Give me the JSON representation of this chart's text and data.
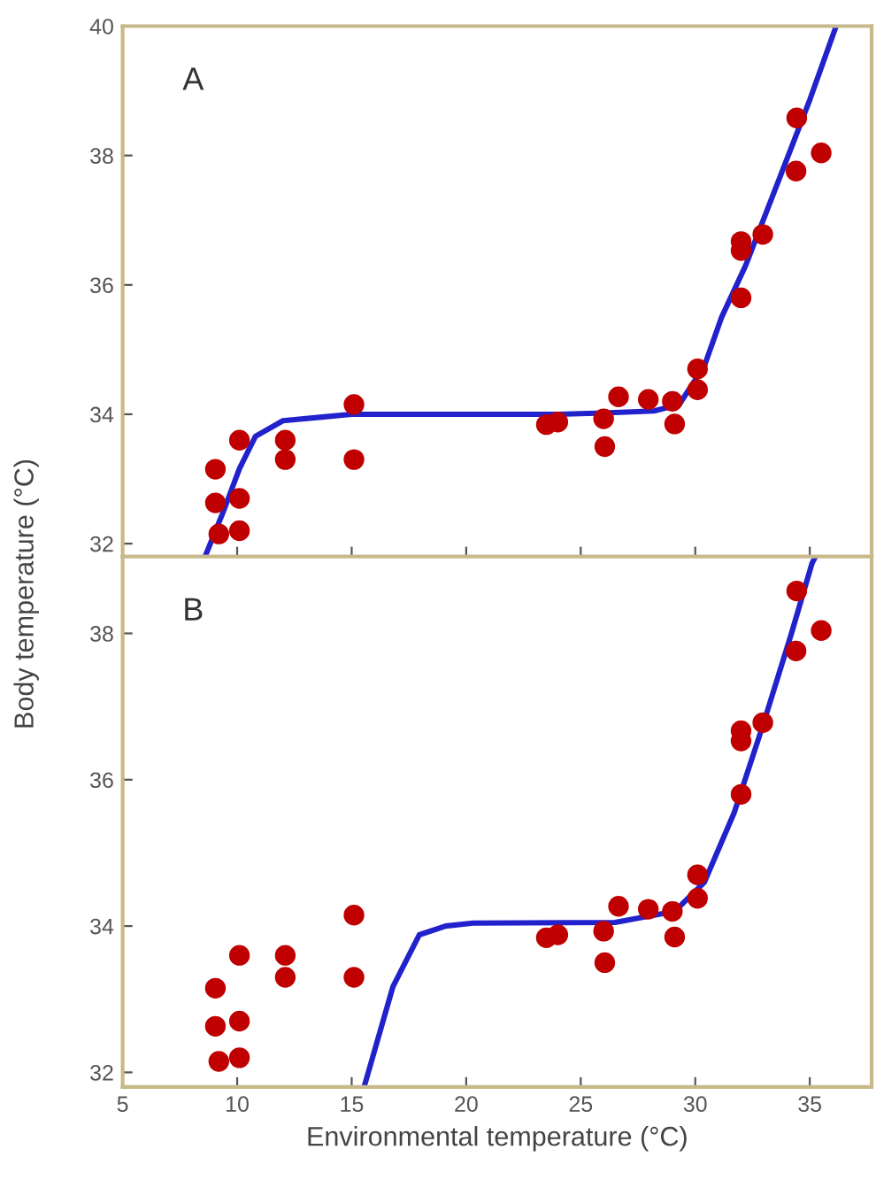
{
  "chart_data": [
    {
      "type": "scatter",
      "annotations": [
        "A"
      ],
      "xlim": [
        5,
        37.7
      ],
      "ylim": [
        31.8,
        40
      ],
      "xticks": [
        5,
        10,
        15,
        20,
        25,
        30,
        35
      ],
      "yticks": [
        32,
        34,
        36,
        38,
        40
      ],
      "tick_labels": "y",
      "grid": false,
      "legend": false,
      "marker": "circle",
      "x": [
        9.05,
        9.05,
        9.2,
        10.1,
        10.1,
        10.1,
        12.1,
        12.1,
        15.1,
        15.1,
        23.5,
        24.0,
        26.0,
        26.05,
        26.65,
        27.95,
        29.0,
        29.1,
        30.1,
        30.1,
        32.0,
        32.0,
        32.0,
        32.95,
        34.43,
        34.4,
        35.5
      ],
      "series": [
        {
          "color": "#c00000",
          "values": [
            33.15,
            32.63,
            32.15,
            33.6,
            32.7,
            32.2,
            33.6,
            33.3,
            34.15,
            33.3,
            33.84,
            33.88,
            33.93,
            33.5,
            34.27,
            34.23,
            34.2,
            33.85,
            34.38,
            34.7,
            36.67,
            36.53,
            35.8,
            36.78,
            38.58,
            37.76,
            38.04
          ]
        },
        {
          "type": "line",
          "color": "#2222cc",
          "line_style": "solid",
          "marker": "none",
          "x": [
            8.6,
            9.4,
            10.1,
            10.8,
            12,
            13.8,
            15,
            20,
            24,
            26,
            28.2,
            29.3,
            30.4,
            31.15,
            32.2,
            33.7,
            35,
            36.15
          ],
          "values": [
            31.8,
            32.5,
            33.16,
            33.66,
            33.9,
            33.96,
            34,
            34,
            34,
            34.02,
            34.05,
            34.15,
            34.75,
            35.5,
            36.3,
            37.67,
            38.86,
            40
          ]
        }
      ]
    },
    {
      "type": "scatter",
      "annotations": [
        "B"
      ],
      "xlabel": "Environmental temperature (°C)",
      "ylabel": "Body temperature (°C)",
      "xlim": [
        5,
        37.7
      ],
      "ylim": [
        31.8,
        39.05
      ],
      "xticks": [
        5,
        10,
        15,
        20,
        25,
        30,
        35
      ],
      "yticks": [
        32,
        34,
        36,
        38
      ],
      "grid": false,
      "legend": false,
      "marker": "circle",
      "x": [
        9.05,
        9.05,
        9.2,
        10.1,
        10.1,
        10.1,
        12.1,
        12.1,
        15.1,
        15.1,
        23.5,
        24.0,
        26.0,
        26.05,
        26.65,
        27.95,
        29.0,
        29.1,
        30.1,
        30.1,
        32.0,
        32.0,
        32.0,
        32.95,
        34.43,
        34.4,
        35.5
      ],
      "series": [
        {
          "color": "#c00000",
          "values": [
            33.15,
            32.63,
            32.15,
            33.6,
            32.7,
            32.2,
            33.6,
            33.3,
            34.15,
            33.3,
            33.84,
            33.88,
            33.93,
            33.5,
            34.27,
            34.23,
            34.2,
            33.85,
            34.38,
            34.7,
            36.67,
            36.53,
            35.8,
            36.78,
            38.58,
            37.76,
            38.04
          ]
        },
        {
          "type": "line",
          "color": "#2222cc",
          "line_style": "solid",
          "marker": "none",
          "x": [
            15.56,
            16.8,
            17.95,
            19.1,
            20.3,
            26.5,
            29.1,
            30.4,
            31.7,
            32.95,
            34.2,
            35.1,
            35.25
          ],
          "values": [
            31.82,
            33.17,
            33.88,
            34.0,
            34.04,
            34.05,
            34.2,
            34.6,
            35.55,
            36.74,
            38.0,
            38.96,
            39.05
          ]
        }
      ]
    }
  ]
}
